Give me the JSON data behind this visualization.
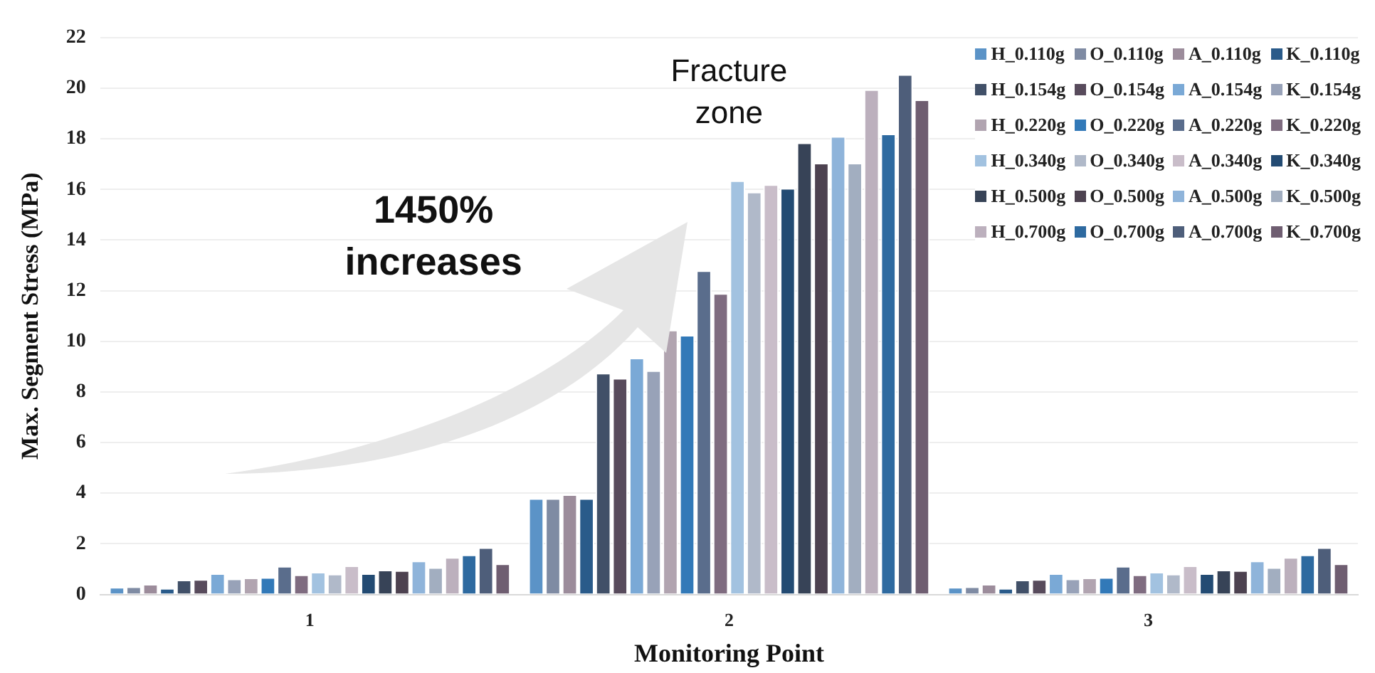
{
  "chart_data": {
    "type": "bar",
    "xlabel": "Monitoring Point",
    "ylabel": "Max. Segment Stress (MPa)",
    "categories": [
      "1",
      "2",
      "3"
    ],
    "ylim": [
      0,
      22
    ],
    "yticks": [
      0,
      2,
      4,
      6,
      8,
      10,
      12,
      14,
      16,
      18,
      20,
      22
    ],
    "grid": "y",
    "legend": "top right",
    "annotations": [
      "1450%\nincreases",
      "Fracture\nzone"
    ],
    "series": [
      {
        "name": "H_0.110g",
        "color": "#5b93c7",
        "values": [
          0.29,
          3.8,
          0.29
        ]
      },
      {
        "name": "O_0.110g",
        "color": "#7f8ba3",
        "values": [
          0.31,
          3.8,
          0.31
        ]
      },
      {
        "name": "A_0.110g",
        "color": "#9c8c9b",
        "values": [
          0.41,
          3.95,
          0.41
        ]
      },
      {
        "name": "K_0.110g",
        "color": "#2a5b8a",
        "values": [
          0.25,
          3.8,
          0.25
        ]
      },
      {
        "name": "H_0.154g",
        "color": "#415068",
        "values": [
          0.58,
          8.75,
          0.58
        ]
      },
      {
        "name": "O_0.154g",
        "color": "#584b5c",
        "values": [
          0.6,
          8.55,
          0.6
        ]
      },
      {
        "name": "A_0.154g",
        "color": "#7aa9d6",
        "values": [
          0.83,
          9.35,
          0.83
        ]
      },
      {
        "name": "K_0.154g",
        "color": "#98a2b8",
        "values": [
          0.62,
          8.85,
          0.62
        ]
      },
      {
        "name": "H_0.220g",
        "color": "#b1a4b0",
        "values": [
          0.66,
          10.45,
          0.66
        ]
      },
      {
        "name": "O_0.220g",
        "color": "#3279b8",
        "values": [
          0.68,
          10.25,
          0.68
        ]
      },
      {
        "name": "A_0.220g",
        "color": "#5a6d8c",
        "values": [
          1.12,
          12.8,
          1.12
        ]
      },
      {
        "name": "K_0.220g",
        "color": "#7f6c80",
        "values": [
          0.78,
          11.9,
          0.78
        ]
      },
      {
        "name": "H_0.340g",
        "color": "#a2c2e0",
        "values": [
          0.89,
          16.35,
          0.89
        ]
      },
      {
        "name": "O_0.340g",
        "color": "#b0b9c9",
        "values": [
          0.81,
          15.9,
          0.81
        ]
      },
      {
        "name": "A_0.340g",
        "color": "#c9bdc9",
        "values": [
          1.14,
          16.2,
          1.14
        ]
      },
      {
        "name": "K_0.340g",
        "color": "#234b73",
        "values": [
          0.83,
          16.05,
          0.83
        ]
      },
      {
        "name": "H_0.500g",
        "color": "#374357",
        "values": [
          0.97,
          17.85,
          0.97
        ]
      },
      {
        "name": "O_0.500g",
        "color": "#4d4250",
        "values": [
          0.95,
          17.05,
          0.95
        ]
      },
      {
        "name": "A_0.500g",
        "color": "#8fb4da",
        "values": [
          1.33,
          18.1,
          1.33
        ]
      },
      {
        "name": "K_0.500g",
        "color": "#a2aec0",
        "values": [
          1.07,
          17.05,
          1.07
        ]
      },
      {
        "name": "H_0.700g",
        "color": "#bcb0bd",
        "values": [
          1.47,
          19.95,
          1.47
        ]
      },
      {
        "name": "O_0.700g",
        "color": "#2e6aa0",
        "values": [
          1.57,
          18.2,
          1.57
        ]
      },
      {
        "name": "A_0.700g",
        "color": "#4e5e7a",
        "values": [
          1.86,
          20.55,
          1.86
        ]
      },
      {
        "name": "K_0.700g",
        "color": "#6f5e71",
        "values": [
          1.22,
          19.55,
          1.22
        ]
      }
    ]
  }
}
